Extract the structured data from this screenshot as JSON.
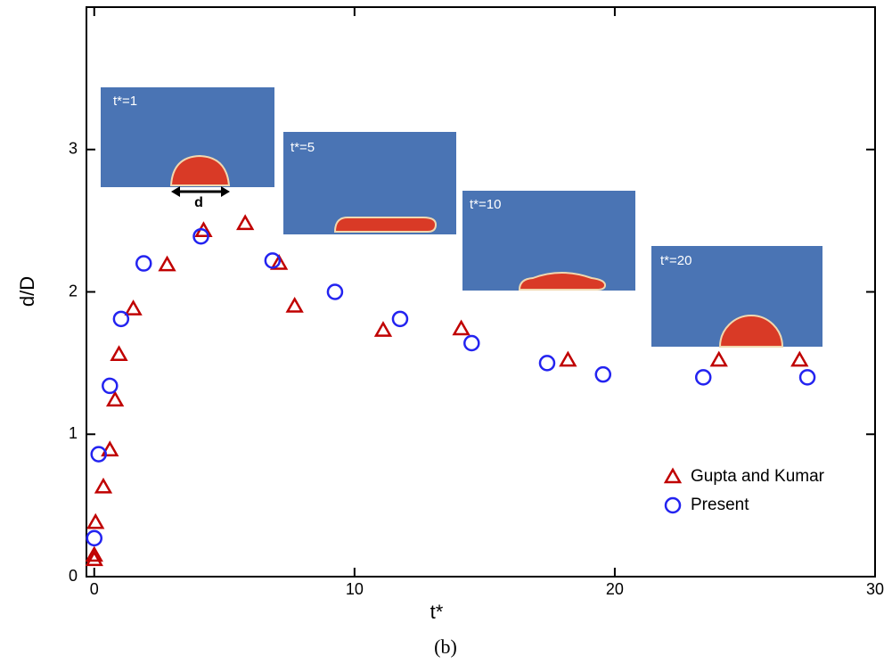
{
  "chart_data": {
    "type": "scatter",
    "xlabel": "t*",
    "ylabel": "d/D",
    "caption": "(b)",
    "xlim": [
      -0.3,
      30
    ],
    "ylim": [
      0,
      4
    ],
    "xticks": [
      0,
      10,
      20,
      30
    ],
    "yticks": [
      0,
      1,
      2,
      3
    ],
    "legend": "lower right",
    "annotations": [
      "t*=1",
      "t*=5",
      "t*=10",
      "t*=20",
      "d"
    ],
    "series": [
      {
        "name": "Gupta and Kumar",
        "marker": "triangle",
        "color": "#c00000",
        "x": [
          0,
          0,
          0.05,
          0.35,
          0.6,
          0.8,
          0.95,
          1.5,
          2.8,
          4.2,
          5.8,
          7.1,
          7.7,
          11.1,
          14.1,
          18.2,
          24.0,
          27.1
        ],
        "values": [
          0.12,
          0.15,
          0.38,
          0.63,
          0.89,
          1.24,
          1.56,
          1.88,
          2.19,
          2.43,
          2.48,
          2.2,
          1.9,
          1.73,
          1.74,
          1.52,
          1.52,
          1.52
        ]
      },
      {
        "name": "Present",
        "marker": "circle",
        "color": "#2323f0",
        "x": [
          0,
          0.17,
          0.6,
          1.03,
          1.9,
          4.1,
          6.85,
          9.25,
          11.75,
          14.5,
          17.4,
          19.55,
          23.4,
          27.4
        ],
        "values": [
          0.27,
          0.86,
          1.34,
          1.81,
          2.2,
          2.39,
          2.22,
          2.0,
          1.81,
          1.64,
          1.5,
          1.42,
          1.4,
          1.4
        ]
      }
    ]
  }
}
